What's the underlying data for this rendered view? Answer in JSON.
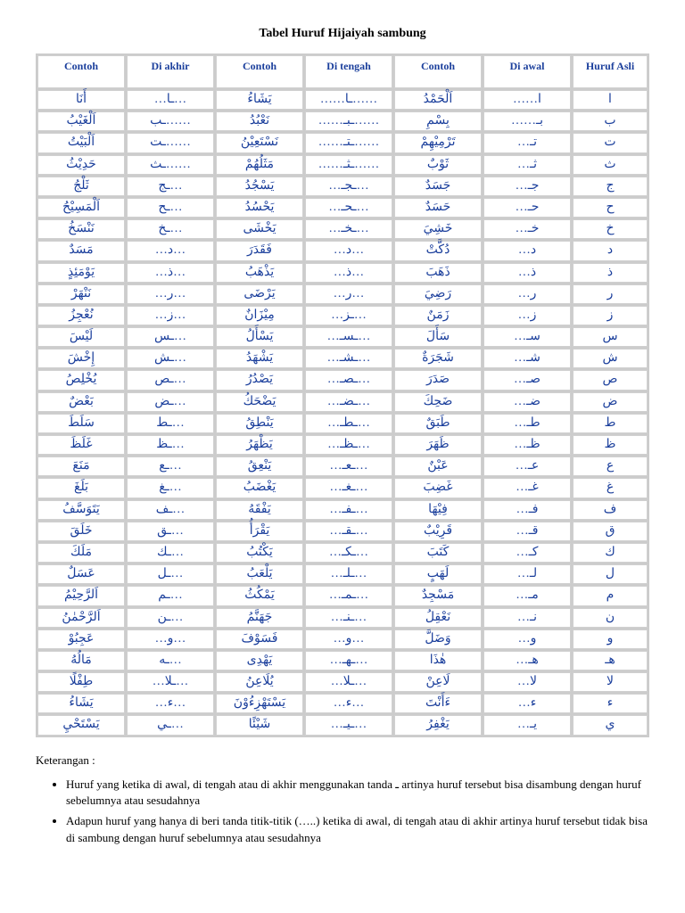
{
  "title": "Tabel Huruf Hijaiyah sambung",
  "table": {
    "columns": [
      "Contoh",
      "Di akhir",
      "Contoh",
      "Di tengah",
      "Contoh",
      "Di awal",
      "Huruf  Asli"
    ],
    "widths_pct": [
      14,
      14,
      14,
      14,
      14,
      14,
      12
    ],
    "header_color": "#1b3f9c",
    "cell_color": "#1b3f9c",
    "border_color": "#d0d0d0",
    "bg_color": "#ffffff",
    "grid_bg": "#cccccc",
    "font_size_header": 12,
    "font_size_cell": 14,
    "rows": [
      [
        "أَنَا",
        "…ـا…",
        "يَشَاءُ",
        "……ـا……",
        "اَلْحَمْدُ",
        "ا……",
        "ا"
      ],
      [
        "اَلْغَيْبُ",
        "……ـب",
        "نَعْبُدُ",
        "……ـبـ……",
        "بِسْمِ",
        "بـ……",
        "ب"
      ],
      [
        "اَلْبَيْتُ",
        "……ـت",
        "نَسْتَعِيْنُ",
        "……ـتـ……",
        "تَرْمِيْهِمْ",
        "تـ…",
        "ت"
      ],
      [
        "حَدِيْثُ",
        "……ـث",
        "مَثَلُهُمْ",
        "……ـثـ……",
        "ثَوْبٌ",
        "ثـ…",
        "ث"
      ],
      [
        "ثَلْجُ",
        "…ـج",
        "يَسْجُدُ",
        "…ـجـ…",
        "جَسَدٌ",
        "جـ…",
        "ج"
      ],
      [
        "اَلْمَسِيْحُ",
        "…ـح",
        "يَحْسُدُ",
        "…ـحـ…",
        "حَسَدٌ",
        "حـ…",
        "ح"
      ],
      [
        "نَنْسَخُ",
        "…ـخ",
        "يَخْشَى",
        "…ـخـ…",
        "خَشِيَ",
        "خـ…",
        "خ"
      ],
      [
        "مَسَدٌ",
        "…د…",
        "فَقَدَرَ",
        "…د…",
        "دُكَّتْ",
        "د…",
        "د"
      ],
      [
        "يَوْمَئِذٍ",
        "…ذ…",
        "يَذْهَبُ",
        "…ذ…",
        "ذَهَبَ",
        "ذ…",
        "ذ"
      ],
      [
        "نَنْهَرْ",
        "…ر…",
        "يَرْضَى",
        "…ر…",
        "رَضِيَ",
        "ر…",
        "ر"
      ],
      [
        "نُعْجِزُ",
        "…ز…",
        "مِيْزَانٌ",
        "…ـز…",
        "زَمَنٌ",
        "ز…",
        "ز"
      ],
      [
        "لَيْسَ",
        "…ـس",
        "يَسْأَلُ",
        "…ـسـ…",
        "سَأَلَ",
        "سـ…",
        "س"
      ],
      [
        "إِخْشَ",
        "…ـش",
        "يَشْهَدُ",
        "…ـشـ…",
        "شَجَرَةٌ",
        "شـ…",
        "ش"
      ],
      [
        "يُخْلِصُ",
        "…ـص",
        "يَصْدُرُ",
        "…ـصـ…",
        "صَدَرَ",
        "صـ…",
        "ص"
      ],
      [
        "بَعْضٌ",
        "…ـض",
        "يَضْحَكُ",
        "…ـضـ…",
        "ضَحِكَ",
        "ضـ…",
        "ض"
      ],
      [
        "سَلَطَ",
        "…ـط",
        "يَنْطِقُ",
        "…ـطـ…",
        "طَبَقٌ",
        "طـ…",
        "ط"
      ],
      [
        "غَلَظَ",
        "…ـظ",
        "يَظْهَرُ",
        "…ـظـ…",
        "ظَهَرَ",
        "ظـ…",
        "ظ"
      ],
      [
        "مَنَعَ",
        "…ـع",
        "يَنْعِقُ",
        "…ـعـ…",
        "عَبْنٌ",
        "عـ…",
        "ع"
      ],
      [
        "بَلَغَ",
        "…ـغ",
        "يَغْضَبُ",
        "…ـغـ…",
        "غَضِبَ",
        "غـ…",
        "غ"
      ],
      [
        "يَتَوَسَّفُ",
        "…ـف",
        "يَفْقَهُ",
        "…ـفـ…",
        "فِيْهَا",
        "فـ…",
        "ف"
      ],
      [
        "خَلَقَ",
        "…ـق",
        "يَقْرَأُ",
        "…ـقـ…",
        "قَرِيْبٌ",
        "قـ…",
        "ق"
      ],
      [
        "مَلَكَ",
        "…ـك",
        "يَكْتُبُ",
        "…ـكـ…",
        "كَتَبَ",
        "كـ…",
        "ك"
      ],
      [
        "عَسَلٌ",
        "…ـل",
        "يَلْعَبُ",
        "…ـلـ…",
        "لَهَبٍ",
        "لـ…",
        "ل"
      ],
      [
        "اَلرَّحِيْمُ",
        "…ـم",
        "يَمْكُثُ",
        "…ـمـ…",
        "مَسْجِدٌ",
        "مـ…",
        "م"
      ],
      [
        "اَلرَّحْمٰنُ",
        "…ـن",
        "جَهَنَّمُ",
        "…ـنـ…",
        "نَعْقِلُ",
        "نـ…",
        "ن"
      ],
      [
        "عَجِبُوْ",
        "…و…",
        "فَسَوْفَ",
        "…و…",
        "وَضَلَّ",
        "و…",
        "و"
      ],
      [
        "مَالُهُ",
        "…ـه",
        "يَهْدِى",
        "…ـهـ…",
        "هٰذَا",
        "هـ…",
        "هـ"
      ],
      [
        "طِفْلًا",
        "…ـلا…",
        "يُلَاعِنُ",
        "…ـلا…",
        "لَاعِنْ",
        "لا…",
        "لا"
      ],
      [
        "يَشَاءُ",
        "…ء…",
        "يَسْتَهْزِءُوْنَ",
        "…ء…",
        "ءَأَنْتَ",
        "ء…",
        "ء"
      ],
      [
        "يَسْتَحْيِ",
        "…ـي",
        "شَيْئًا",
        "…ـيـ…",
        "يَغْفِرُ",
        "يـ…",
        "ي"
      ]
    ]
  },
  "keterangan": {
    "heading": "Keterangan :",
    "items": [
      "Huruf yang ketika di awal, di tengah atau di akhir menggunakan tanda ـ artinya huruf tersebut bisa disambung dengan huruf sebelumnya atau sesudahnya",
      "Adapun huruf yang hanya di beri tanda titik-titik (…..) ketika di awal, di tengah atau di akhir artinya huruf tersebut tidak bisa di sambung dengan huruf sebelumnya atau sesudahnya"
    ]
  }
}
